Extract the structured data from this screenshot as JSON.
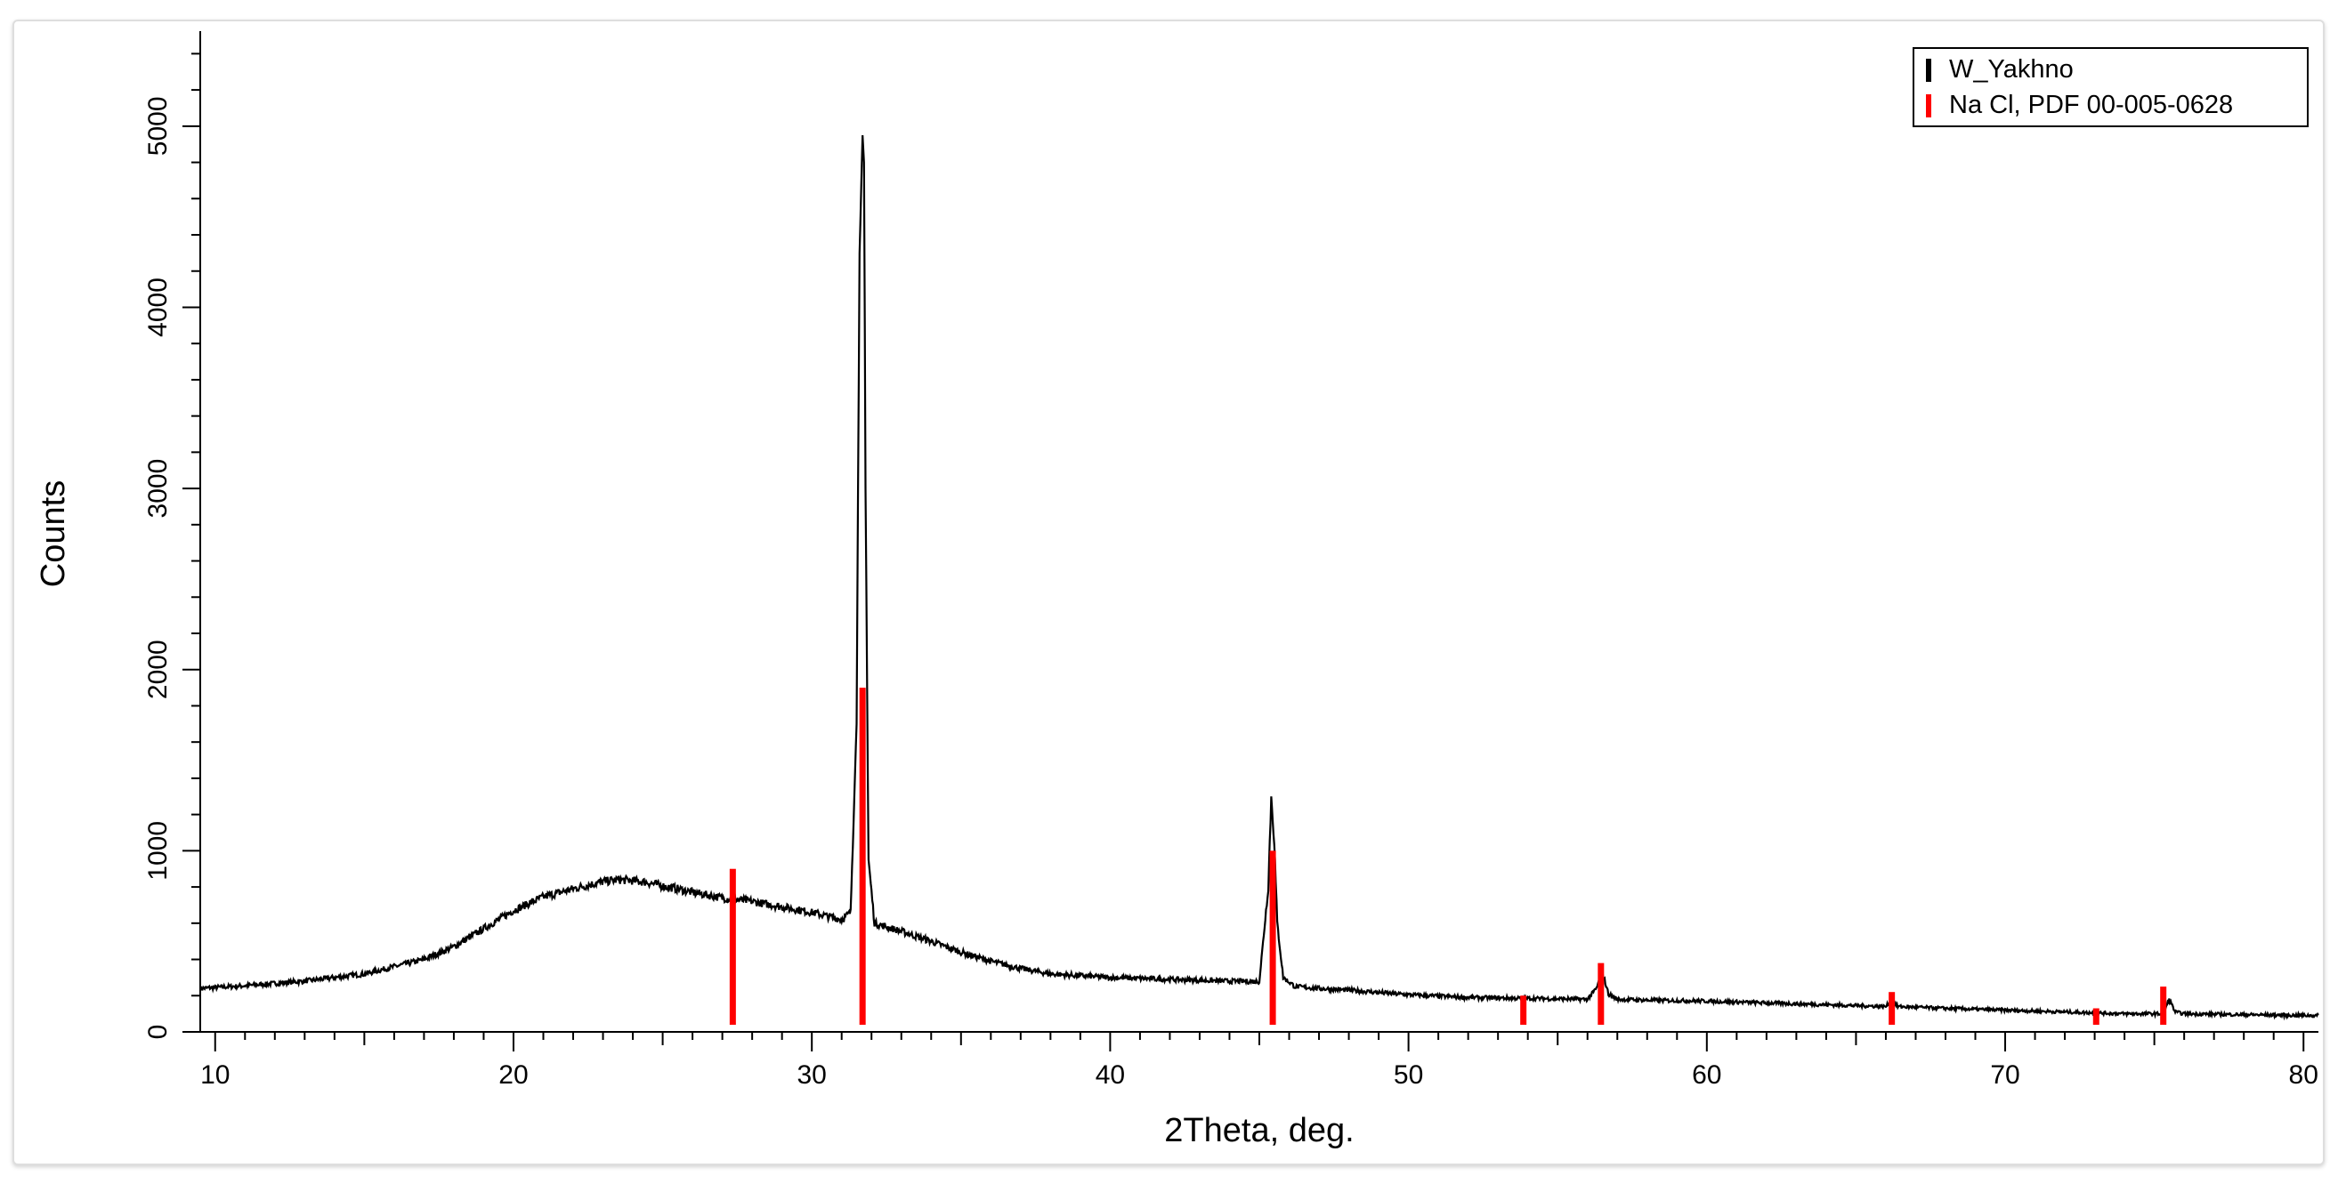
{
  "chart_data": {
    "type": "line",
    "xlabel": "2Theta, deg.",
    "ylabel": "Counts",
    "xlim": [
      9.5,
      80.5
    ],
    "ylim": [
      0,
      5500
    ],
    "xticks": [
      10,
      20,
      30,
      40,
      50,
      60,
      70,
      80
    ],
    "yticks": [
      0,
      1000,
      2000,
      3000,
      4000,
      5000
    ],
    "xtick_labels": [
      "10",
      "20",
      "30",
      "40",
      "50",
      "60",
      "70",
      "80"
    ],
    "ytick_labels": [
      "0",
      "1000",
      "2000",
      "3000",
      "4000",
      "5000"
    ],
    "grid": false,
    "legend_position": "top-right",
    "series": [
      {
        "name": "W_Yakhno",
        "color": "#000000",
        "kind": "line",
        "x": [
          9.5,
          11,
          13,
          15,
          17,
          18,
          19,
          20,
          21,
          22,
          22.5,
          23,
          23.5,
          24,
          24.5,
          25,
          25.5,
          26,
          27,
          28,
          29,
          30,
          30.5,
          31,
          31.3,
          31.5,
          31.6,
          31.7,
          31.75,
          31.8,
          31.9,
          32.1,
          32.4,
          33,
          34,
          35,
          36,
          37,
          38,
          40,
          42,
          44,
          45,
          45.3,
          45.4,
          45.5,
          45.6,
          45.8,
          46.2,
          47,
          48,
          50,
          52,
          54,
          56,
          56.3,
          56.5,
          56.7,
          57,
          58,
          60,
          62,
          64,
          66,
          66.2,
          66.4,
          68,
          70,
          72,
          74,
          75.3,
          75.5,
          75.7,
          76,
          78,
          80.5
        ],
        "y": [
          240,
          255,
          280,
          320,
          400,
          470,
          570,
          670,
          745,
          790,
          810,
          830,
          840,
          835,
          825,
          805,
          790,
          770,
          740,
          720,
          690,
          660,
          640,
          620,
          660,
          1700,
          4300,
          4950,
          4800,
          3000,
          950,
          600,
          585,
          555,
          500,
          440,
          390,
          350,
          320,
          300,
          290,
          280,
          278,
          800,
          1300,
          1050,
          600,
          300,
          250,
          240,
          230,
          205,
          190,
          185,
          180,
          240,
          330,
          210,
          180,
          175,
          170,
          160,
          150,
          140,
          175,
          140,
          130,
          120,
          110,
          100,
          100,
          180,
          110,
          100,
          95,
          90
        ]
      },
      {
        "name": "Na Cl, PDF 00-005-0628",
        "color": "#ff0000",
        "kind": "stick",
        "x": [
          27.35,
          31.7,
          45.45,
          53.85,
          56.45,
          66.2,
          73.05,
          75.3
        ],
        "y": [
          900,
          1900,
          1000,
          200,
          380,
          220,
          130,
          250
        ]
      }
    ]
  }
}
